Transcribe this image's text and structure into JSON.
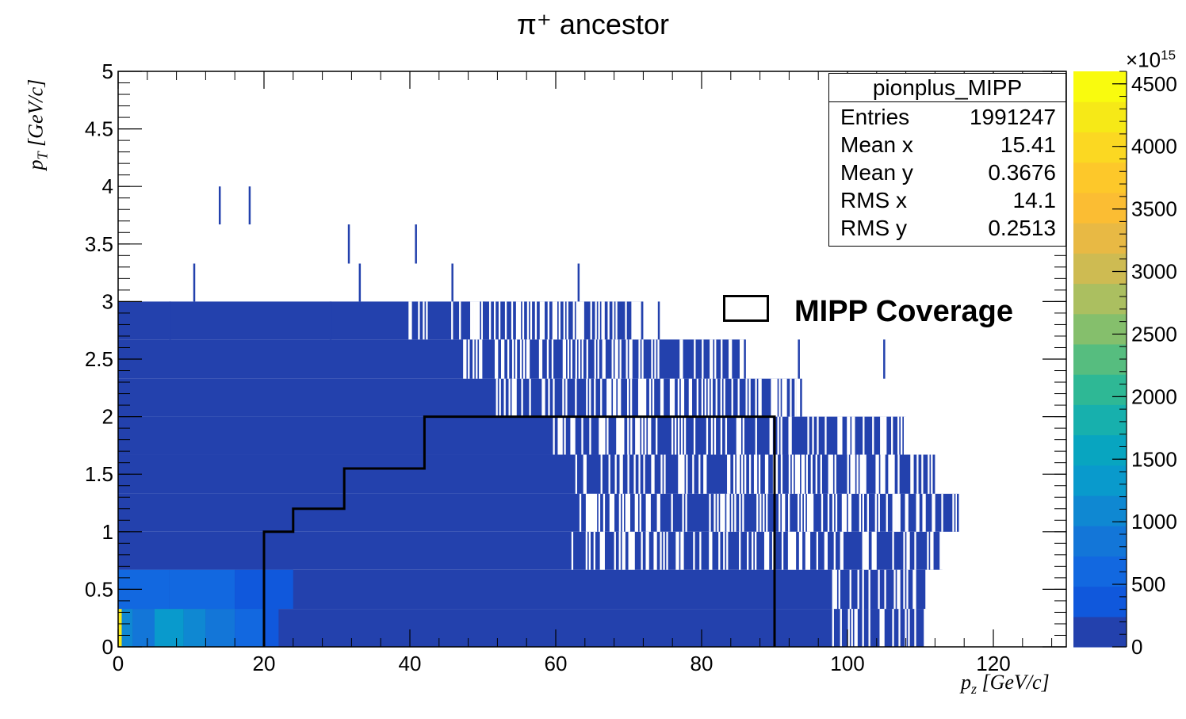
{
  "chart_data": {
    "type": "heatmap",
    "title": "π⁺ ancestor",
    "xlabel": "p_z [GeV/c]",
    "ylabel": "p_T [GeV/c]",
    "xlim": [
      0,
      130
    ],
    "ylim": [
      0,
      5
    ],
    "x_ticks": [
      "0",
      "20",
      "40",
      "60",
      "80",
      "100",
      "120"
    ],
    "y_ticks": [
      "0",
      "0.5",
      "1",
      "1.5",
      "2",
      "2.5",
      "3",
      "3.5",
      "4",
      "4.5",
      "5"
    ],
    "colorbar": {
      "range": [
        0,
        4600
      ],
      "multiplier": "×10^15",
      "ticks": [
        "0",
        "500",
        "1000",
        "1500",
        "2000",
        "2500",
        "3000",
        "3500",
        "4000",
        "4500"
      ],
      "colors": [
        "#2341ad",
        "#1058dc",
        "#1268e0",
        "#1376d8",
        "#0f88d2",
        "#099acc",
        "#08a5c0",
        "#17b0ad",
        "#2eb895",
        "#56bd7f",
        "#85bf6c",
        "#abbf60",
        "#cebb52",
        "#e8b944",
        "#fbbd33",
        "#fdc82a",
        "#fbd822",
        "#f6e917",
        "#f9fb0e"
      ]
    },
    "stats_box": {
      "name": "pionplus_MIPP",
      "rows": [
        {
          "label": "Entries",
          "value": "1991247"
        },
        {
          "label": "Mean x",
          "value": "15.41"
        },
        {
          "label": "Mean y",
          "value": "0.3676"
        },
        {
          "label": "RMS x",
          "value": "14.1"
        },
        {
          "label": "RMS y",
          "value": "0.2513"
        }
      ]
    },
    "legend": {
      "label": "MIPP Coverage"
    },
    "mipp_coverage": [
      [
        20,
        0
      ],
      [
        20,
        1
      ],
      [
        24,
        1
      ],
      [
        24,
        1.2
      ],
      [
        31,
        1.2
      ],
      [
        31,
        1.55
      ],
      [
        42,
        1.55
      ],
      [
        42,
        2
      ],
      [
        90,
        2
      ],
      [
        90,
        0
      ]
    ],
    "high_density_cells": [
      {
        "x": [
          0,
          0.5
        ],
        "y": [
          0,
          0.33
        ],
        "value": 4200
      },
      {
        "x": [
          0.5,
          2
        ],
        "y": [
          0,
          0.33
        ],
        "value": 1000
      },
      {
        "x": [
          2,
          5
        ],
        "y": [
          0,
          0.33
        ],
        "value": 800
      },
      {
        "x": [
          5,
          9
        ],
        "y": [
          0,
          0.33
        ],
        "value": 1250
      },
      {
        "x": [
          9,
          12
        ],
        "y": [
          0,
          0.33
        ],
        "value": 1000
      },
      {
        "x": [
          12,
          16
        ],
        "y": [
          0,
          0.33
        ],
        "value": 850
      },
      {
        "x": [
          16,
          20
        ],
        "y": [
          0,
          0.33
        ],
        "value": 500
      },
      {
        "x": [
          20,
          22
        ],
        "y": [
          0,
          0.33
        ],
        "value": 400
      },
      {
        "x": [
          0,
          7
        ],
        "y": [
          0.33,
          0.67
        ],
        "value": 600
      },
      {
        "x": [
          7,
          16
        ],
        "y": [
          0.33,
          0.67
        ],
        "value": 550
      },
      {
        "x": [
          16,
          24
        ],
        "y": [
          0.33,
          0.67
        ],
        "value": 400
      }
    ],
    "bulk_region_value": 200,
    "occupancy_edges": [
      {
        "y": [
          0,
          0.33
        ],
        "x_max": 111
      },
      {
        "y": [
          0.33,
          0.67
        ],
        "x_max": 111
      },
      {
        "y": [
          0.67,
          1.0
        ],
        "x_max": 113
      },
      {
        "y": [
          1.0,
          1.33
        ],
        "x_max": 115
      },
      {
        "y": [
          1.33,
          1.67
        ],
        "x_max": 112
      },
      {
        "y": [
          1.67,
          2.0
        ],
        "x_max": 108
      },
      {
        "y": [
          2.0,
          2.33
        ],
        "x_max": 93
      },
      {
        "y": [
          2.33,
          2.67
        ],
        "x_max": 86
      },
      {
        "y": [
          2.67,
          3.0
        ],
        "x_max": 72
      }
    ]
  }
}
